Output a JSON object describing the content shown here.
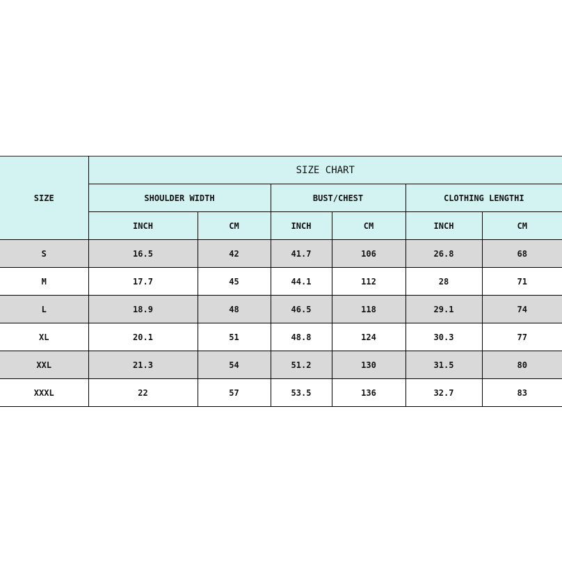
{
  "header": {
    "size_label": "SIZE",
    "title": "SIZE CHART",
    "groups": [
      "SHOULDER WIDTH",
      "BUST/CHEST",
      "CLOTHING LENGTHI"
    ],
    "units": [
      "INCH",
      "CM",
      "INCH",
      "CM",
      "INCH",
      "CM"
    ]
  },
  "colors": {
    "header_bg": "#d3f3f3",
    "row_gray": "#d9d9d9",
    "row_white": "#ffffff"
  },
  "rows": [
    [
      "S",
      "16.5",
      "42",
      "41.7",
      "106",
      "26.8",
      "68"
    ],
    [
      "M",
      "17.7",
      "45",
      "44.1",
      "112",
      "28",
      "71"
    ],
    [
      "L",
      "18.9",
      "48",
      "46.5",
      "118",
      "29.1",
      "74"
    ],
    [
      "XL",
      "20.1",
      "51",
      "48.8",
      "124",
      "30.3",
      "77"
    ],
    [
      "XXL",
      "21.3",
      "54",
      "51.2",
      "130",
      "31.5",
      "80"
    ],
    [
      "XXXL",
      "22",
      "57",
      "53.5",
      "136",
      "32.7",
      "83"
    ]
  ]
}
